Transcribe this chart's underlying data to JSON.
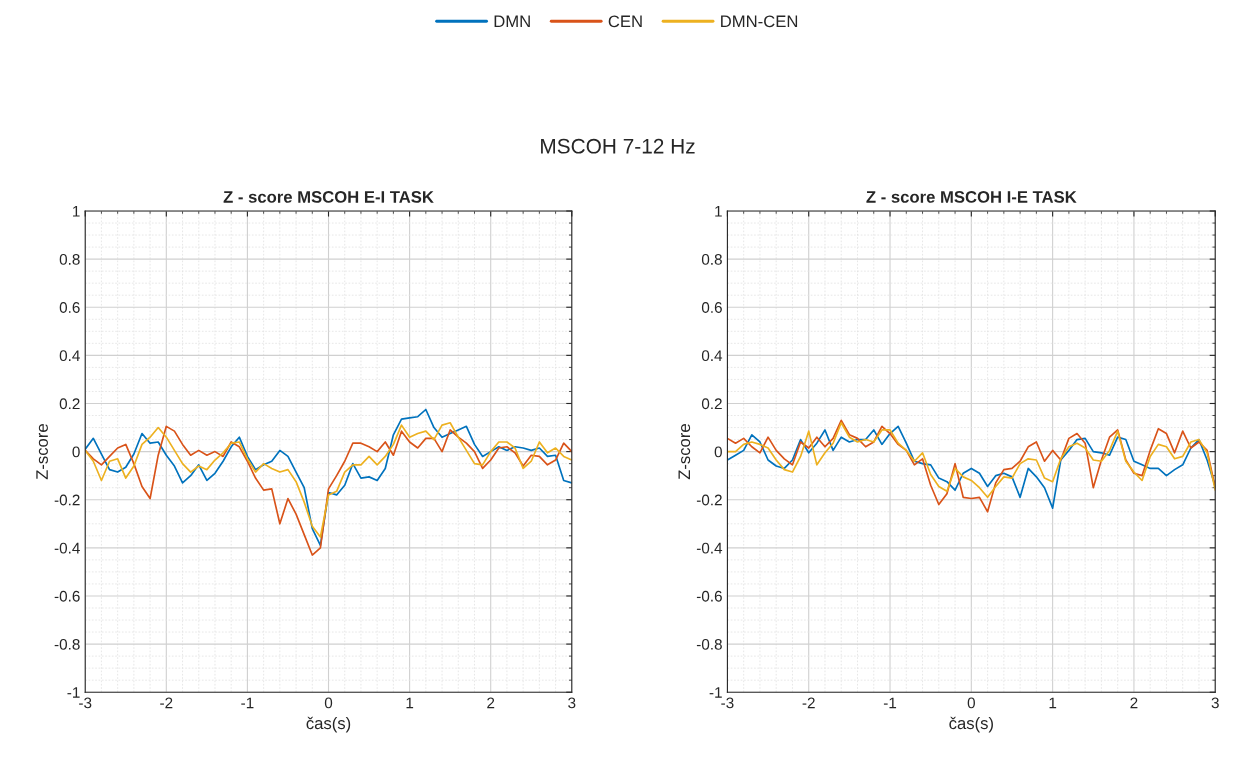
{
  "chart_data": [
    {
      "type": "line",
      "title": "Z - score MSCOH E-I TASK",
      "xlabel": "čas(s)",
      "ylabel": "Z-score",
      "annotations": [
        "MSCOH 7-12 Hz"
      ],
      "x": [
        -3.0,
        -2.9,
        -2.8,
        -2.7,
        -2.6,
        -2.5,
        -2.4,
        -2.3,
        -2.2,
        -2.1,
        -2.0,
        -1.9,
        -1.8,
        -1.7,
        -1.6,
        -1.5,
        -1.4,
        -1.3,
        -1.2,
        -1.1,
        -1.0,
        -0.9,
        -0.8,
        -0.7,
        -0.6,
        -0.5,
        -0.4,
        -0.3,
        -0.2,
        -0.1,
        0.0,
        0.1,
        0.2,
        0.3,
        0.4,
        0.5,
        0.6,
        0.7,
        0.8,
        0.9,
        1.0,
        1.1,
        1.2,
        1.3,
        1.4,
        1.5,
        1.6,
        1.7,
        1.8,
        1.9,
        2.0,
        2.1,
        2.2,
        2.3,
        2.4,
        2.5,
        2.6,
        2.7,
        2.8,
        2.9,
        3.0
      ],
      "series": [
        {
          "name": "DMN",
          "color": "#0072bd",
          "values": [
            0.01,
            0.055,
            -0.01,
            -0.075,
            -0.085,
            -0.065,
            -0.01,
            0.075,
            0.035,
            0.04,
            -0.015,
            -0.06,
            -0.13,
            -0.1,
            -0.055,
            -0.12,
            -0.09,
            -0.04,
            0.02,
            0.06,
            -0.02,
            -0.075,
            -0.055,
            -0.04,
            0.005,
            -0.02,
            -0.085,
            -0.15,
            -0.32,
            -0.39,
            -0.17,
            -0.18,
            -0.14,
            -0.05,
            -0.11,
            -0.105,
            -0.12,
            -0.07,
            0.07,
            0.135,
            0.14,
            0.145,
            0.175,
            0.1,
            0.06,
            0.075,
            0.09,
            0.105,
            0.03,
            -0.02,
            0,
            0.02,
            0.005,
            0.02,
            0.015,
            0.005,
            0.015,
            -0.02,
            -0.015,
            -0.12,
            -0.13
          ]
        },
        {
          "name": "CEN",
          "color": "#d95319",
          "values": [
            0.005,
            -0.03,
            -0.055,
            -0.02,
            0.015,
            0.03,
            -0.05,
            -0.145,
            -0.195,
            -0.015,
            0.105,
            0.085,
            0.03,
            -0.015,
            0.005,
            -0.015,
            0,
            -0.02,
            0.04,
            0.02,
            -0.04,
            -0.11,
            -0.16,
            -0.155,
            -0.3,
            -0.195,
            -0.26,
            -0.345,
            -0.43,
            -0.4,
            -0.155,
            -0.1,
            -0.04,
            0.035,
            0.035,
            0.02,
            0,
            0.04,
            -0.015,
            0.085,
            0.04,
            0.015,
            0.055,
            0.055,
            0,
            0.09,
            0.06,
            0.035,
            0,
            -0.07,
            -0.035,
            0.015,
            0.02,
            -0.005,
            -0.06,
            -0.015,
            -0.02,
            -0.055,
            -0.035,
            0.035,
            0
          ]
        },
        {
          "name": "DMN-CEN",
          "color": "#edb120",
          "values": [
            0.005,
            -0.04,
            -0.12,
            -0.04,
            -0.03,
            -0.11,
            -0.06,
            0.03,
            0.06,
            0.1,
            0.06,
            0.005,
            -0.05,
            -0.085,
            -0.06,
            -0.075,
            -0.035,
            -0.005,
            0.035,
            0.04,
            -0.03,
            -0.085,
            -0.05,
            -0.07,
            -0.085,
            -0.075,
            -0.125,
            -0.21,
            -0.31,
            -0.355,
            -0.18,
            -0.165,
            -0.085,
            -0.055,
            -0.055,
            -0.02,
            -0.055,
            -0.02,
            0.03,
            0.11,
            0.06,
            0.075,
            0.085,
            0.05,
            0.11,
            0.12,
            0.06,
            0.005,
            -0.05,
            -0.055,
            0,
            0.04,
            0.04,
            0.015,
            -0.07,
            -0.04,
            0.04,
            -0.005,
            0.015,
            -0.02,
            -0.035
          ]
        }
      ],
      "xlim": [
        -3,
        3
      ],
      "xticks": [
        -3,
        -2,
        -1,
        0,
        1,
        2,
        3
      ],
      "ylim": [
        -1,
        1
      ],
      "yticks": [
        -1,
        -0.8,
        -0.6,
        -0.4,
        -0.2,
        0,
        0.2,
        0.4,
        0.6,
        0.8,
        1
      ],
      "grid": true,
      "legend": "top",
      "marker": "none",
      "line_style": "solid"
    },
    {
      "type": "line",
      "title": "Z - score MSCOH I-E TASK",
      "xlabel": "čas(s)",
      "ylabel": "Z-score",
      "x": [
        -3.0,
        -2.9,
        -2.8,
        -2.7,
        -2.6,
        -2.5,
        -2.4,
        -2.3,
        -2.2,
        -2.1,
        -2.0,
        -1.9,
        -1.8,
        -1.7,
        -1.6,
        -1.5,
        -1.4,
        -1.3,
        -1.2,
        -1.1,
        -1.0,
        -0.9,
        -0.8,
        -0.7,
        -0.6,
        -0.5,
        -0.4,
        -0.3,
        -0.2,
        -0.1,
        0.0,
        0.1,
        0.2,
        0.3,
        0.4,
        0.5,
        0.6,
        0.7,
        0.8,
        0.9,
        1.0,
        1.1,
        1.2,
        1.3,
        1.4,
        1.5,
        1.6,
        1.7,
        1.8,
        1.9,
        2.0,
        2.1,
        2.2,
        2.3,
        2.4,
        2.5,
        2.6,
        2.7,
        2.8,
        2.9,
        3.0
      ],
      "series": [
        {
          "color": "#0072bd",
          "values": [
            -0.035,
            -0.015,
            0.005,
            0.07,
            0.04,
            -0.035,
            -0.06,
            -0.07,
            -0.035,
            0.05,
            -0.005,
            0.035,
            0.09,
            0.005,
            0.06,
            0.04,
            0.05,
            0.05,
            0.09,
            0.03,
            0.075,
            0.105,
            0.035,
            -0.04,
            -0.05,
            -0.055,
            -0.11,
            -0.125,
            -0.16,
            -0.09,
            -0.07,
            -0.09,
            -0.145,
            -0.1,
            -0.09,
            -0.105,
            -0.19,
            -0.07,
            -0.105,
            -0.15,
            -0.235,
            -0.035,
            0.005,
            0.05,
            0.055,
            0,
            -0.005,
            -0.015,
            0.06,
            0.05,
            -0.04,
            -0.055,
            -0.07,
            -0.07,
            -0.1,
            -0.075,
            -0.055,
            0.015,
            0.05,
            -0.035,
            -0.145
          ]
        },
        {
          "color": "#d95319",
          "values": [
            0.055,
            0.035,
            0.055,
            0.02,
            -0.005,
            0.06,
            0.005,
            -0.03,
            -0.055,
            0.04,
            0.015,
            0.06,
            0.02,
            0.055,
            0.13,
            0.07,
            0.055,
            0.02,
            0.04,
            0.105,
            0.075,
            0.03,
            0.005,
            -0.055,
            -0.03,
            -0.14,
            -0.22,
            -0.175,
            -0.05,
            -0.19,
            -0.195,
            -0.19,
            -0.25,
            -0.13,
            -0.075,
            -0.07,
            -0.04,
            0.02,
            0.04,
            -0.04,
            0.005,
            -0.035,
            0.055,
            0.075,
            0.035,
            -0.15,
            -0.035,
            0.06,
            0.09,
            -0.035,
            -0.09,
            -0.1,
            0.005,
            0.095,
            0.075,
            -0.005,
            0.085,
            0.015,
            0.04,
            0.005,
            -0.15
          ]
        },
        {
          "color": "#edb120",
          "values": [
            0,
            0,
            0.03,
            0.04,
            0.03,
            0.015,
            -0.035,
            -0.075,
            -0.085,
            -0.02,
            0.085,
            -0.055,
            -0.005,
            0.035,
            0.12,
            0.06,
            0.04,
            0.05,
            0.04,
            0.09,
            0.09,
            0.035,
            0.005,
            -0.04,
            -0.005,
            -0.095,
            -0.145,
            -0.165,
            -0.07,
            -0.105,
            -0.12,
            -0.15,
            -0.19,
            -0.145,
            -0.105,
            -0.11,
            -0.05,
            -0.03,
            -0.035,
            -0.11,
            -0.125,
            -0.03,
            0.02,
            0.035,
            0.015,
            -0.035,
            -0.04,
            0.005,
            0.085,
            -0.04,
            -0.085,
            -0.12,
            -0.02,
            0.03,
            0.02,
            -0.03,
            -0.02,
            0.04,
            0.05,
            -0.005,
            -0.16
          ]
        }
      ],
      "xlim": [
        -3,
        3
      ],
      "xticks": [
        -3,
        -2,
        -1,
        0,
        1,
        2,
        3
      ],
      "ylim": [
        -1,
        1
      ],
      "yticks": [
        -1,
        -0.8,
        -0.6,
        -0.4,
        -0.2,
        0,
        0.2,
        0.4,
        0.6,
        0.8,
        1
      ],
      "grid": true,
      "marker": "none",
      "line_style": "solid"
    }
  ]
}
